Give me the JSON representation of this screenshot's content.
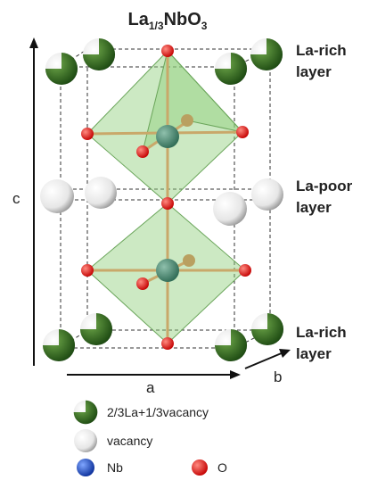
{
  "title": {
    "parts": [
      "La",
      "1/3",
      "NbO",
      "3"
    ]
  },
  "axes": {
    "c": "c",
    "a": "a",
    "b": "b"
  },
  "layers": [
    {
      "lines": [
        "La-rich",
        "layer"
      ]
    },
    {
      "lines": [
        "La-poor",
        "layer"
      ]
    },
    {
      "lines": [
        "La-rich",
        "layer"
      ]
    }
  ],
  "legend": [
    "2/3La+1/3vacancy",
    "vacancy",
    "Nb",
    "O"
  ]
}
